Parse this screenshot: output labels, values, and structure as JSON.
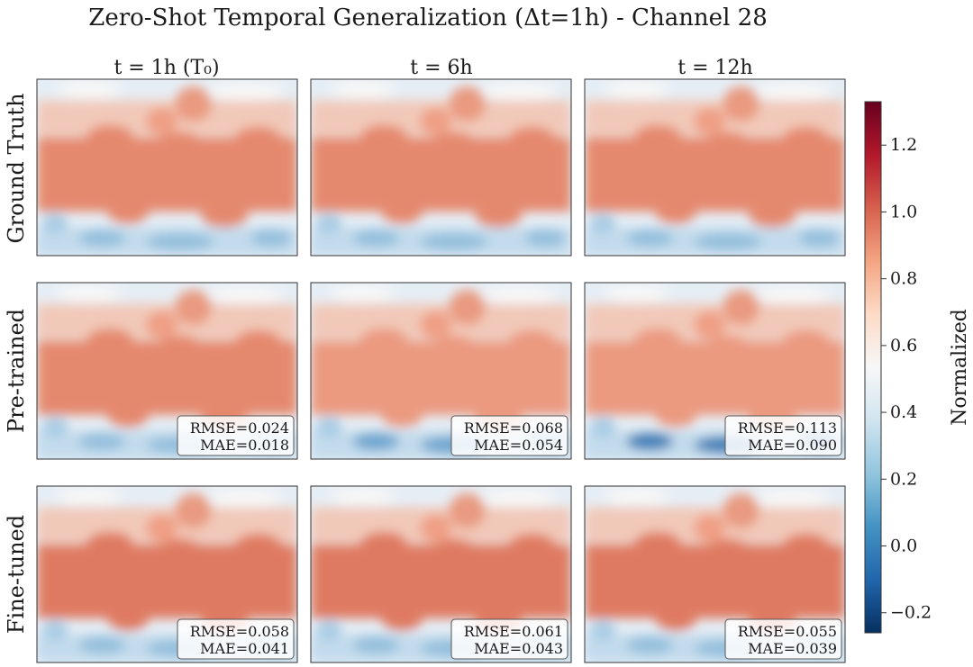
{
  "chart_data": {
    "type": "heatmap",
    "title": "Zero-Shot Temporal Generalization (Δt=1h) - Channel 28",
    "columns": [
      {
        "label": "t = 1h (T₀)"
      },
      {
        "label": "t = 6h"
      },
      {
        "label": "t = 12h"
      }
    ],
    "rows": [
      {
        "label": "Ground Truth",
        "panels": [
          {
            "rmse": "",
            "mae": "",
            "blue_intensity": 0.45,
            "red_intensity": 0.75
          },
          {
            "rmse": "",
            "mae": "",
            "blue_intensity": 0.45,
            "red_intensity": 0.75
          },
          {
            "rmse": "",
            "mae": "",
            "blue_intensity": 0.5,
            "red_intensity": 0.75
          }
        ]
      },
      {
        "label": "Pre-trained",
        "panels": [
          {
            "rmse": "RMSE=0.024",
            "mae": "MAE=0.018",
            "blue_intensity": 0.5,
            "red_intensity": 0.72
          },
          {
            "rmse": "RMSE=0.068",
            "mae": "MAE=0.054",
            "blue_intensity": 0.65,
            "red_intensity": 0.68
          },
          {
            "rmse": "RMSE=0.113",
            "mae": "MAE=0.090",
            "blue_intensity": 0.85,
            "red_intensity": 0.62
          }
        ]
      },
      {
        "label": "Fine-tuned",
        "panels": [
          {
            "rmse": "RMSE=0.058",
            "mae": "MAE=0.041",
            "blue_intensity": 0.55,
            "red_intensity": 0.82
          },
          {
            "rmse": "RMSE=0.061",
            "mae": "MAE=0.043",
            "blue_intensity": 0.55,
            "red_intensity": 0.84
          },
          {
            "rmse": "RMSE=0.055",
            "mae": "MAE=0.039",
            "blue_intensity": 0.5,
            "red_intensity": 0.8
          }
        ]
      }
    ],
    "colorbar": {
      "label": "Normalized",
      "vmin": -0.26,
      "vmax": 1.33,
      "ticks": [
        -0.2,
        0.0,
        0.2,
        0.4,
        0.6,
        0.8,
        1.0,
        1.2
      ],
      "tick_labels": [
        "−0.2",
        "0.0",
        "0.2",
        "0.4",
        "0.6",
        "0.8",
        "1.0",
        "1.2"
      ],
      "colormap": "RdBu_r",
      "colors": [
        "#053061",
        "#2166ac",
        "#4393c3",
        "#92c5de",
        "#d1e5f0",
        "#f7f7f7",
        "#fddbc7",
        "#f4a582",
        "#d6604d",
        "#b2182b",
        "#67001f"
      ]
    }
  }
}
